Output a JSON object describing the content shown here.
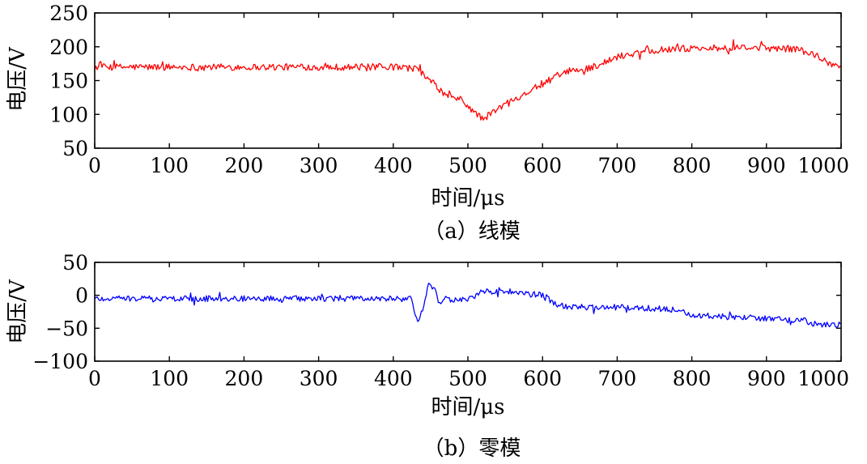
{
  "chart_data": [
    {
      "type": "line",
      "caption": "（a）线模",
      "xlabel": "时间/μs",
      "ylabel": "电压/V",
      "xlim": [
        0,
        1000
      ],
      "ylim": [
        50,
        250
      ],
      "xticks": [
        0,
        100,
        200,
        300,
        400,
        500,
        600,
        700,
        800,
        900,
        1000
      ],
      "yticks": [
        50,
        100,
        150,
        200,
        250
      ],
      "grid": false,
      "color": "#ff0000",
      "series": [
        {
          "x": [
            0,
            100,
            200,
            300,
            400,
            430,
            450,
            470,
            490,
            510,
            520,
            540,
            560,
            580,
            600,
            620,
            640,
            660,
            680,
            700,
            720,
            740,
            760,
            780,
            800,
            850,
            900,
            940,
            960,
            980,
            1000
          ],
          "values": [
            170,
            170,
            170,
            170,
            170,
            168,
            150,
            128,
            122,
            102,
            93,
            108,
            122,
            133,
            145,
            157,
            164,
            168,
            175,
            185,
            190,
            194,
            196,
            197,
            198,
            198,
            198,
            197,
            190,
            178,
            170
          ]
        }
      ]
    },
    {
      "type": "line",
      "caption": "（b）零模",
      "xlabel": "时间/μs",
      "ylabel": "电压/V",
      "xlim": [
        0,
        1000
      ],
      "ylim": [
        -100,
        50
      ],
      "xticks": [
        0,
        100,
        200,
        300,
        400,
        500,
        600,
        700,
        800,
        900,
        1000
      ],
      "yticks": [
        -100,
        -50,
        0,
        50
      ],
      "grid": false,
      "color": "#0000ff",
      "series": [
        {
          "x": [
            0,
            100,
            200,
            300,
            400,
            425,
            432,
            440,
            447,
            455,
            462,
            470,
            480,
            500,
            520,
            540,
            560,
            580,
            600,
            620,
            640,
            700,
            750,
            780,
            800,
            850,
            900,
            950,
            970,
            1000
          ],
          "values": [
            -5,
            -5,
            -5,
            -5,
            -5,
            -6,
            -40,
            -20,
            15,
            10,
            -15,
            -5,
            -8,
            -5,
            5,
            7,
            5,
            2,
            0,
            -15,
            -18,
            -18,
            -20,
            -22,
            -30,
            -33,
            -35,
            -38,
            -45,
            -45
          ]
        }
      ]
    }
  ]
}
